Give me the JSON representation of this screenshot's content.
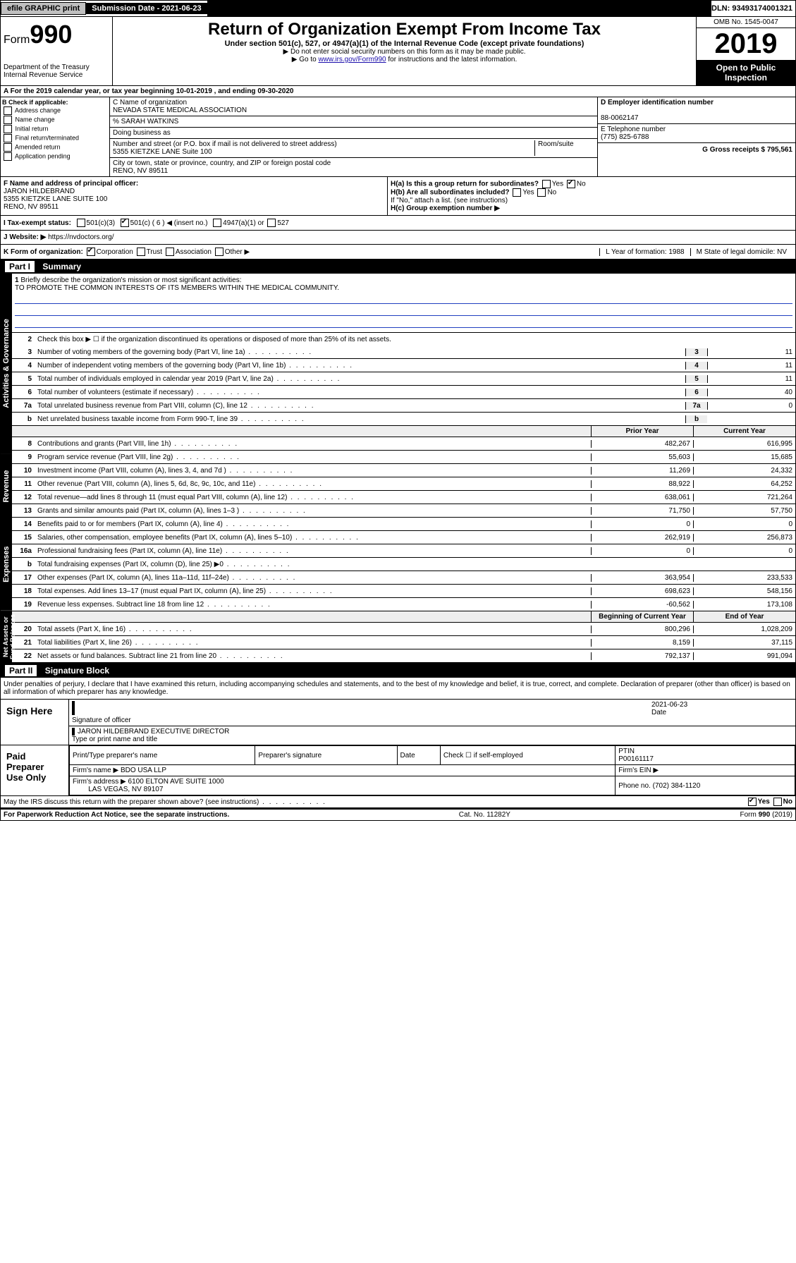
{
  "topbar": {
    "efile": "efile GRAPHIC print",
    "submission": "Submission Date - 2021-06-23",
    "dln": "DLN: 93493174001321"
  },
  "header": {
    "form_label": "Form",
    "form_num": "990",
    "title": "Return of Organization Exempt From Income Tax",
    "subtitle": "Under section 501(c), 527, or 4947(a)(1) of the Internal Revenue Code (except private foundations)",
    "note1": "▶ Do not enter social security numbers on this form as it may be made public.",
    "note2": "▶ Go to www.irs.gov/Form990 for instructions and the latest information.",
    "note2_link": "www.irs.gov/Form990",
    "dept": "Department of the Treasury\nInternal Revenue Service",
    "omb": "OMB No. 1545-0047",
    "year": "2019",
    "open": "Open to Public Inspection"
  },
  "sectionA": "A For the 2019 calendar year, or tax year beginning 10-01-2019   , and ending 09-30-2020",
  "sectionB": {
    "label": "B Check if applicable:",
    "opts": [
      "Address change",
      "Name change",
      "Initial return",
      "Final return/terminated",
      "Amended return",
      "Application pending"
    ]
  },
  "sectionC": {
    "name_label": "C Name of organization",
    "name": "NEVADA STATE MEDICAL ASSOCIATION",
    "care_of": "% SARAH WATKINS",
    "dba_label": "Doing business as",
    "addr_label": "Number and street (or P.O. box if mail is not delivered to street address)",
    "room_label": "Room/suite",
    "addr": "5355 KIETZKE LANE Suite 100",
    "city_label": "City or town, state or province, country, and ZIP or foreign postal code",
    "city": "RENO, NV  89511"
  },
  "sectionD": {
    "label": "D Employer identification number",
    "ein": "88-0062147",
    "e_label": "E Telephone number",
    "phone": "(775) 825-6788",
    "g_label": "G Gross receipts $ 795,561"
  },
  "sectionF": {
    "label": "F Name and address of principal officer:",
    "name": "JARON HILDEBRAND",
    "addr": "5355 KIETZKE LANE SUITE 100",
    "city": "RENO, NV  89511"
  },
  "sectionH": {
    "ha": "H(a) Is this a group return for subordinates?",
    "hb": "H(b) Are all subordinates included?",
    "hb_note": "If \"No,\" attach a list. (see instructions)",
    "hc": "H(c) Group exemption number ▶",
    "yes": "Yes",
    "no": "No"
  },
  "statusI": {
    "label": "I Tax-exempt status:",
    "o1": "501(c)(3)",
    "o2": "501(c) ( 6 ) ◀ (insert no.)",
    "o3": "4947(a)(1) or",
    "o4": "527"
  },
  "sectionJ": {
    "label": "J Website: ▶",
    "url": "https://nvdoctors.org/"
  },
  "sectionK": {
    "label": "K Form of organization:",
    "opts": [
      "Corporation",
      "Trust",
      "Association",
      "Other ▶"
    ],
    "l_label": "L Year of formation: 1988",
    "m_label": "M State of legal domicile: NV"
  },
  "part1": {
    "header": "Part I",
    "title": "Summary",
    "tab1": "Activities & Governance",
    "tab2": "Revenue",
    "tab3": "Expenses",
    "tab4": "Net Assets or Fund Balances",
    "l1": "Briefly describe the organization's mission or most significant activities:",
    "mission": "TO PROMOTE THE COMMON INTERESTS OF ITS MEMBERS WITHIN THE MEDICAL COMMUNITY.",
    "l2": "Check this box ▶ ☐ if the organization discontinued its operations or disposed of more than 25% of its net assets.",
    "rows_gov": [
      {
        "n": "3",
        "d": "Number of voting members of the governing body (Part VI, line 1a)",
        "v": "11"
      },
      {
        "n": "4",
        "d": "Number of independent voting members of the governing body (Part VI, line 1b)",
        "v": "11"
      },
      {
        "n": "5",
        "d": "Total number of individuals employed in calendar year 2019 (Part V, line 2a)",
        "v": "11"
      },
      {
        "n": "6",
        "d": "Total number of volunteers (estimate if necessary)",
        "v": "40"
      },
      {
        "n": "7a",
        "d": "Total unrelated business revenue from Part VIII, column (C), line 12",
        "v": "0"
      },
      {
        "n": "b",
        "d": "Net unrelated business taxable income from Form 990-T, line 39",
        "v": ""
      }
    ],
    "col_prior": "Prior Year",
    "col_current": "Current Year",
    "col_begin": "Beginning of Current Year",
    "col_end": "End of Year",
    "rows_rev": [
      {
        "n": "8",
        "d": "Contributions and grants (Part VIII, line 1h)",
        "p": "482,267",
        "c": "616,995"
      },
      {
        "n": "9",
        "d": "Program service revenue (Part VIII, line 2g)",
        "p": "55,603",
        "c": "15,685"
      },
      {
        "n": "10",
        "d": "Investment income (Part VIII, column (A), lines 3, 4, and 7d )",
        "p": "11,269",
        "c": "24,332"
      },
      {
        "n": "11",
        "d": "Other revenue (Part VIII, column (A), lines 5, 6d, 8c, 9c, 10c, and 11e)",
        "p": "88,922",
        "c": "64,252"
      },
      {
        "n": "12",
        "d": "Total revenue—add lines 8 through 11 (must equal Part VIII, column (A), line 12)",
        "p": "638,061",
        "c": "721,264"
      }
    ],
    "rows_exp": [
      {
        "n": "13",
        "d": "Grants and similar amounts paid (Part IX, column (A), lines 1–3 )",
        "p": "71,750",
        "c": "57,750"
      },
      {
        "n": "14",
        "d": "Benefits paid to or for members (Part IX, column (A), line 4)",
        "p": "0",
        "c": "0"
      },
      {
        "n": "15",
        "d": "Salaries, other compensation, employee benefits (Part IX, column (A), lines 5–10)",
        "p": "262,919",
        "c": "256,873"
      },
      {
        "n": "16a",
        "d": "Professional fundraising fees (Part IX, column (A), line 11e)",
        "p": "0",
        "c": "0"
      },
      {
        "n": "b",
        "d": "Total fundraising expenses (Part IX, column (D), line 25) ▶0",
        "p": "",
        "c": ""
      },
      {
        "n": "17",
        "d": "Other expenses (Part IX, column (A), lines 11a–11d, 11f–24e)",
        "p": "363,954",
        "c": "233,533"
      },
      {
        "n": "18",
        "d": "Total expenses. Add lines 13–17 (must equal Part IX, column (A), line 25)",
        "p": "698,623",
        "c": "548,156"
      },
      {
        "n": "19",
        "d": "Revenue less expenses. Subtract line 18 from line 12",
        "p": "-60,562",
        "c": "173,108"
      }
    ],
    "rows_net": [
      {
        "n": "20",
        "d": "Total assets (Part X, line 16)",
        "p": "800,296",
        "c": "1,028,209"
      },
      {
        "n": "21",
        "d": "Total liabilities (Part X, line 26)",
        "p": "8,159",
        "c": "37,115"
      },
      {
        "n": "22",
        "d": "Net assets or fund balances. Subtract line 21 from line 20",
        "p": "792,137",
        "c": "991,094"
      }
    ]
  },
  "part2": {
    "header": "Part II",
    "title": "Signature Block",
    "declaration": "Under penalties of perjury, I declare that I have examined this return, including accompanying schedules and statements, and to the best of my knowledge and belief, it is true, correct, and complete. Declaration of preparer (other than officer) is based on all information of which preparer has any knowledge."
  },
  "sign": {
    "label": "Sign Here",
    "sig_label": "Signature of officer",
    "date": "2021-06-23",
    "date_label": "Date",
    "name": "JARON HILDEBRAND EXECUTIVE DIRECTOR",
    "name_label": "Type or print name and title"
  },
  "paid": {
    "label": "Paid Preparer Use Only",
    "h1": "Print/Type preparer's name",
    "h2": "Preparer's signature",
    "h3": "Date",
    "h4": "Check ☐ if self-employed",
    "h5": "PTIN",
    "ptin": "P00161117",
    "firm_label": "Firm's name  ▶",
    "firm": "BDO USA LLP",
    "ein_label": "Firm's EIN ▶",
    "addr_label": "Firm's address ▶",
    "addr": "6100 ELTON AVE SUITE 1000",
    "addr2": "LAS VEGAS, NV  89107",
    "phone_label": "Phone no.",
    "phone": "(702) 384-1120"
  },
  "footer": {
    "discuss": "May the IRS discuss this return with the preparer shown above? (see instructions)",
    "yes": "Yes",
    "no": "No",
    "paperwork": "For Paperwork Reduction Act Notice, see the separate instructions.",
    "cat": "Cat. No. 11282Y",
    "form": "Form 990 (2019)"
  }
}
